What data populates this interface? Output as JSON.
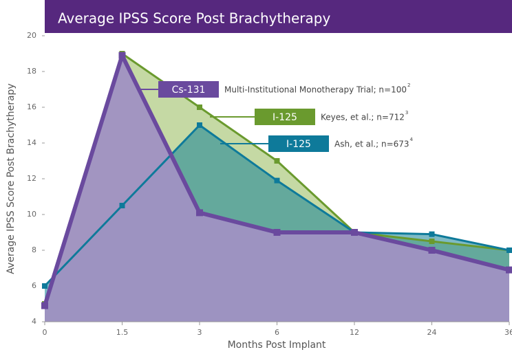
{
  "chart_data": {
    "type": "line",
    "title": "Average IPSS Score Post Brachytherapy",
    "x_label": "Months Post Implant",
    "y_label": "Average IPSS Score Post Brachytherapy",
    "categories": [
      "0",
      "1.5",
      "3",
      "6",
      "12",
      "24",
      "36"
    ],
    "ylim": [
      4,
      20
    ],
    "yticks": [
      4,
      6,
      8,
      10,
      12,
      14,
      16,
      18,
      20
    ],
    "series": [
      {
        "name": "I-125",
        "note": "Keyes, et al.; n=712",
        "ref": "3",
        "color": "#6a9a2e",
        "fill": "rgba(150,185,90,0.55)",
        "values": [
          5.0,
          19.0,
          16.0,
          13.0,
          9.0,
          8.5,
          8.0
        ]
      },
      {
        "name": "I-125",
        "note": "Ash, et al.; n=673",
        "ref": "4",
        "color": "#0e7a9a",
        "fill": "rgba(20,130,150,0.55)",
        "values": [
          6.0,
          10.5,
          15.0,
          11.9,
          9.0,
          8.9,
          8.0
        ]
      },
      {
        "name": "Cs-131",
        "note": "Multi-Institutional Monotherapy Trial; n=100",
        "ref": "2",
        "color": "#6a4a9e",
        "fill": "rgba(160,145,195,0.95)",
        "values": [
          4.9,
          18.9,
          10.1,
          9.0,
          9.0,
          8.0,
          6.9
        ]
      }
    ]
  }
}
